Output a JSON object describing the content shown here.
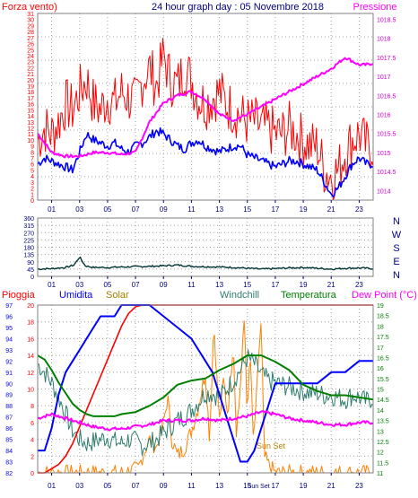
{
  "chart_data": [
    {
      "type": "line",
      "title": "24 hour graph day : 05 Novembre 2018",
      "left_label": "Forza vento)",
      "right_label": "Pressione",
      "x_ticks": [
        "01",
        "03",
        "05",
        "07",
        "09",
        "11",
        "13",
        "15",
        "17",
        "19",
        "21",
        "23"
      ],
      "y_left_ticks": [
        "0",
        "1",
        "2",
        "3",
        "4",
        "5",
        "6",
        "7",
        "8",
        "9",
        "10",
        "11",
        "12",
        "13",
        "14",
        "15",
        "16",
        "17",
        "18",
        "19",
        "20",
        "21",
        "22",
        "23",
        "24",
        "25",
        "26",
        "27",
        "28",
        "29",
        "30",
        "31"
      ],
      "y_left_range": [
        0,
        31
      ],
      "y_right_ticks": [
        "1014",
        "1014.5",
        "1015",
        "1015.5",
        "1016",
        "1016.5",
        "1017",
        "1017.5",
        "1018",
        "1018.5"
      ],
      "y_right_range": [
        1013.75,
        1018.65
      ],
      "colors": {
        "gust": "#ff0000",
        "wind": "#0000ff",
        "pressure": "#ff00ff",
        "axis_left": "#ff0000",
        "axis_right": "#cc00cc",
        "title": "#000080"
      },
      "series": [
        {
          "key": "gust",
          "axis": "left",
          "x": [
            0,
            0.5,
            1,
            1.5,
            2,
            2.5,
            3,
            3.5,
            4,
            4.5,
            5,
            5.5,
            6,
            6.5,
            7,
            7.5,
            8,
            8.5,
            9,
            9.5,
            10,
            10.5,
            11,
            11.5,
            12,
            12.5,
            13,
            13.5,
            14,
            14.5,
            15,
            15.5,
            16,
            16.5,
            17,
            17.5,
            18,
            18.5,
            19,
            19.5,
            20,
            20.5,
            21,
            21.5,
            22,
            22.5,
            23,
            23.5,
            24
          ],
          "y": [
            10,
            12,
            11,
            13,
            16,
            15,
            18,
            20,
            16,
            15,
            17,
            16,
            18,
            17,
            16,
            20,
            22,
            19,
            24,
            20,
            19,
            22,
            20,
            17,
            16,
            17,
            18,
            16,
            15,
            14,
            13,
            13,
            12,
            12,
            11,
            11,
            12,
            11,
            10,
            9,
            9,
            5,
            4,
            5,
            8,
            10,
            11,
            9,
            9
          ]
        },
        {
          "key": "wind",
          "axis": "left",
          "x": [
            0,
            0.5,
            1,
            1.5,
            2,
            2.5,
            3,
            3.5,
            4,
            4.5,
            5,
            5.5,
            6,
            6.5,
            7,
            7.5,
            8,
            8.5,
            9,
            9.5,
            10,
            10.5,
            11,
            11.5,
            12,
            12.5,
            13,
            13.5,
            14,
            14.5,
            15,
            15.5,
            16,
            16.5,
            17,
            17.5,
            18,
            18.5,
            19,
            19.5,
            20,
            20.5,
            21,
            21.5,
            22,
            22.5,
            23,
            23.5,
            24
          ],
          "y": [
            6,
            7,
            6.5,
            6,
            5.5,
            5,
            8,
            11,
            10,
            9.5,
            9,
            9.5,
            8.5,
            8,
            9,
            9.5,
            10.5,
            11.5,
            11,
            10,
            9,
            8.5,
            9.5,
            10,
            9,
            8.5,
            8,
            8.5,
            9,
            9,
            7.5,
            7,
            6.5,
            6,
            5.5,
            6,
            6.5,
            6.5,
            6,
            5.5,
            5,
            3,
            1,
            2,
            4,
            6,
            7,
            6,
            6
          ]
        },
        {
          "key": "pressure",
          "axis": "right",
          "x": [
            0,
            1,
            2,
            3,
            4,
            5,
            6,
            7,
            8,
            9,
            10,
            11,
            12,
            13,
            14,
            15,
            16,
            17,
            18,
            19,
            20,
            21,
            22,
            23,
            23.5,
            24
          ],
          "y": [
            1015.5,
            1015.0,
            1014.9,
            1014.9,
            1015.0,
            1015.0,
            1014.95,
            1015.0,
            1015.8,
            1016.3,
            1016.5,
            1016.6,
            1016.4,
            1016.0,
            1015.85,
            1016.0,
            1016.2,
            1016.4,
            1016.6,
            1016.8,
            1017.0,
            1017.2,
            1017.5,
            1017.3,
            1017.3,
            1017.35
          ]
        }
      ]
    },
    {
      "type": "line",
      "left_ticks": [
        "0",
        "45",
        "90",
        "135",
        "180",
        "225",
        "270",
        "315",
        "360"
      ],
      "y_range": [
        0,
        360
      ],
      "right_letters": [
        "N",
        "W",
        "S",
        "E",
        "N"
      ],
      "x_ticks": [
        "01",
        "03",
        "05",
        "07",
        "09",
        "11",
        "13",
        "15",
        "17",
        "19",
        "21",
        "23"
      ],
      "colors": {
        "direction": "#003333",
        "ticks": "#000080"
      },
      "series": [
        {
          "key": "direction",
          "x": [
            0,
            1,
            2,
            2.6,
            3.0,
            3.4,
            4,
            5,
            6,
            7,
            8,
            9,
            10,
            11,
            12,
            13,
            14,
            15,
            16,
            17,
            18,
            19,
            20,
            21,
            22,
            23,
            24
          ],
          "y": [
            45,
            48,
            55,
            70,
            120,
            65,
            55,
            55,
            58,
            60,
            62,
            65,
            70,
            62,
            60,
            58,
            55,
            50,
            45,
            48,
            52,
            55,
            50,
            45,
            50,
            52,
            48
          ]
        }
      ]
    },
    {
      "type": "line",
      "labels": [
        "Pioggia",
        "Umidita",
        "Solar",
        "Windchill",
        "Temperatura",
        "Dew Point (°C)"
      ],
      "sun_set": "Sun Set",
      "sun_set_axis": "Sun Set",
      "x_ticks": [
        "01",
        "03",
        "05",
        "07",
        "09",
        "11",
        "13",
        "15",
        "17",
        "19",
        "21",
        "23"
      ],
      "y_left_ticks": [
        "82",
        "83",
        "84",
        "85",
        "86",
        "87",
        "88",
        "89",
        "90",
        "91",
        "92",
        "93",
        "94",
        "95",
        "96",
        "97"
      ],
      "y_left_range": [
        82,
        97
      ],
      "y_rain_ticks": [
        "0",
        "2",
        "4",
        "6",
        "8",
        "10",
        "12",
        "14",
        "16",
        "18",
        "20"
      ],
      "y_rain_range": [
        0,
        20
      ],
      "y_right_ticks": [
        "11",
        "11.5",
        "12",
        "12.5",
        "13",
        "13.5",
        "14",
        "14.5",
        "15",
        "15.5",
        "16",
        "16.5",
        "17",
        "17.5",
        "18",
        "18.5",
        "19"
      ],
      "y_right_range": [
        11,
        19
      ],
      "colors": {
        "rain": "#ff0000",
        "humidity": "#0000ff",
        "solar": "#ff8000",
        "windchill": "#2e7d6e",
        "temperature": "#008000",
        "dewpoint": "#ff00ff",
        "pioggia_label": "#ff0000",
        "umidita_label": "#0000ff",
        "solar_label": "#a08000",
        "windchill_label": "#2e7d6e",
        "temp_label": "#008000",
        "dew_label": "#ff00ff"
      },
      "series": [
        {
          "key": "rain",
          "axis": "rain",
          "x": [
            0,
            0.5,
            1,
            1.5,
            2,
            2.5,
            3,
            3.5,
            4,
            4.5,
            5,
            5.5,
            6,
            6.5,
            7,
            7.5,
            8,
            9,
            10,
            11,
            12,
            13,
            14,
            15,
            16,
            17,
            18,
            19,
            20,
            21,
            22,
            23,
            24
          ],
          "y": [
            0,
            0,
            0.5,
            1.0,
            2.0,
            3.5,
            5.5,
            7.5,
            9.5,
            11.5,
            13.5,
            15.5,
            17.5,
            19.0,
            19.8,
            20,
            20,
            20,
            20,
            20,
            20,
            20,
            20,
            20,
            20,
            20,
            20,
            20,
            20,
            20,
            20,
            20,
            20
          ]
        },
        {
          "key": "humidity",
          "axis": "left",
          "x": [
            0,
            0.5,
            1,
            1.5,
            2,
            2.5,
            3,
            3.5,
            4,
            4.5,
            5,
            5.5,
            6,
            7,
            8,
            9,
            10,
            11,
            11.5,
            12,
            12.5,
            13,
            13.5,
            14,
            14.5,
            15,
            15.5,
            16,
            16.5,
            17,
            18,
            19,
            20,
            21,
            22,
            23,
            23.5,
            24
          ],
          "y": [
            84,
            84,
            86,
            89,
            91,
            92,
            93,
            94,
            95,
            96,
            96,
            96,
            97,
            97,
            97,
            96,
            95,
            94,
            93,
            92,
            91,
            89,
            87,
            85,
            83,
            83,
            84,
            86,
            88,
            90,
            90,
            90,
            90,
            91,
            91,
            92,
            92,
            92
          ]
        },
        {
          "key": "temperature",
          "axis": "right",
          "x": [
            0,
            0.5,
            1,
            1.5,
            2,
            2.5,
            3,
            3.5,
            4,
            4.5,
            5,
            5.5,
            6,
            7,
            8,
            9,
            10,
            11,
            12,
            13,
            14,
            15,
            16,
            17,
            18,
            19,
            20,
            21,
            22,
            23,
            24
          ],
          "y": [
            16.6,
            16.4,
            15.9,
            15.3,
            14.8,
            14.3,
            14.0,
            13.8,
            13.7,
            13.7,
            13.7,
            13.7,
            13.8,
            13.9,
            14.2,
            14.6,
            15.2,
            15.4,
            15.5,
            15.9,
            16.2,
            16.6,
            16.6,
            16.3,
            15.9,
            15.2,
            14.9,
            14.7,
            14.7,
            14.6,
            14.5
          ]
        },
        {
          "key": "dewpoint",
          "axis": "right",
          "x": [
            0,
            0.5,
            1,
            1.5,
            2,
            2.5,
            3,
            3.5,
            4,
            5,
            6,
            7,
            8,
            9,
            10,
            11,
            12,
            13,
            14,
            15,
            16,
            17,
            18,
            19,
            20,
            21,
            22,
            23,
            24
          ],
          "y": [
            13.6,
            13.7,
            13.8,
            13.7,
            13.6,
            13.5,
            13.4,
            13.3,
            13.2,
            13.1,
            13.1,
            13.2,
            13.3,
            13.5,
            13.5,
            13.5,
            13.6,
            13.5,
            13.6,
            13.7,
            13.9,
            13.8,
            13.6,
            13.5,
            13.4,
            13.3,
            13.3,
            13.4,
            13.4
          ]
        },
        {
          "key": "windchill",
          "axis": "right",
          "x": [
            0,
            0.5,
            1,
            1.5,
            2,
            2.5,
            3,
            3.5,
            4,
            4.5,
            5,
            5.5,
            6,
            6.5,
            7,
            7.5,
            8,
            8.5,
            9,
            9.5,
            10,
            10.5,
            11,
            11.5,
            12,
            12.5,
            13,
            13.5,
            14,
            14.5,
            15,
            15.5,
            16,
            16.5,
            17,
            17.5,
            18,
            18.5,
            19,
            19.5,
            20,
            20.5,
            21,
            21.5,
            22,
            22.5,
            23,
            23.5,
            24
          ],
          "y": [
            16.2,
            15.8,
            15.3,
            14.6,
            13.8,
            13.0,
            12.6,
            12.4,
            12.5,
            12.6,
            12.7,
            12.5,
            12.4,
            12.6,
            12.5,
            12.3,
            12.4,
            12.6,
            12.9,
            13.2,
            13.5,
            13.7,
            14.0,
            14.4,
            14.8,
            14.8,
            14.6,
            15.0,
            15.4,
            15.9,
            16.5,
            16.2,
            15.7,
            15.4,
            15.3,
            15.2,
            15.1,
            15.0,
            14.9,
            14.8,
            14.8,
            14.7,
            14.7,
            14.6,
            14.5,
            14.7,
            14.6,
            14.4,
            14.6
          ]
        },
        {
          "key": "solar",
          "axis": "rain",
          "x": [
            0,
            6,
            7.2,
            7.5,
            8,
            8.5,
            9,
            9.3,
            9.6,
            10,
            10.5,
            11,
            11.5,
            12,
            12.3,
            12.6,
            13,
            13.3,
            13.6,
            14,
            14.2,
            14.4,
            14.6,
            14.8,
            15,
            15.2,
            15.4,
            15.6,
            15.8,
            16,
            16.2,
            16.5,
            17,
            24
          ],
          "y": [
            0,
            0,
            0.5,
            2,
            4,
            3,
            6,
            9,
            4,
            2,
            3,
            5,
            8,
            12,
            4,
            18,
            6,
            11,
            7,
            16,
            5,
            8,
            13,
            19,
            6,
            15,
            4,
            7,
            14,
            18,
            2,
            1,
            0,
            0
          ]
        }
      ]
    }
  ]
}
